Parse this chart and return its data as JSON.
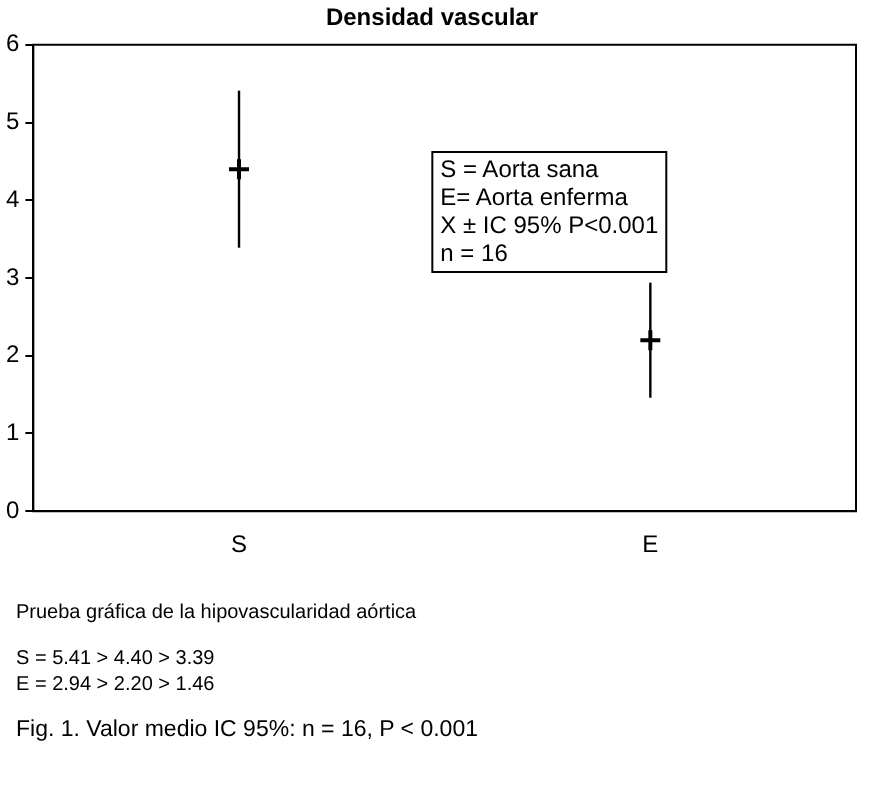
{
  "chart_data": {
    "type": "scatter",
    "title": "Densidad vascular",
    "categories": [
      "S",
      "E"
    ],
    "series": [
      {
        "color": "#000000",
        "values": [
          4.4,
          2.2
        ],
        "errors": [
          [
            3.39,
            5.41
          ],
          [
            1.46,
            2.94
          ]
        ]
      }
    ],
    "marker": "cross",
    "ylim": [
      0,
      6
    ],
    "yticks": [
      0,
      1,
      2,
      3,
      4,
      5,
      6
    ],
    "grid": false,
    "legend": false,
    "annotations": [
      "S = Aorta sana\nE= Aorta enferma\nX ± IC 95% P<0.001\nn = 16",
      "Prueba gráfica de la hipovascularidad aórtica",
      "S = 5.41 > 4.40 > 3.39\nE = 2.94 > 2.20 > 1.46",
      "Fig. 1. Valor medio IC 95%: n = 16, P < 0.001"
    ]
  }
}
